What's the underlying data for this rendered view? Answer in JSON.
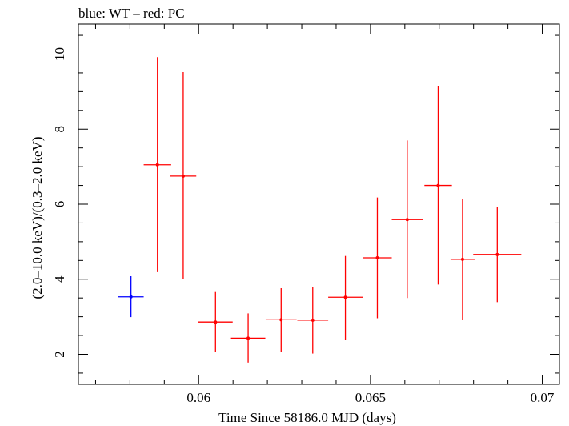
{
  "chart_data": {
    "type": "scatter",
    "title": "blue: WT – red: PC",
    "xlabel": "Time Since 58186.0 MJD (days)",
    "ylabel": "(2.0–10.0 keV)/(0.3–2.0 keV)",
    "xlim": [
      0.0565,
      0.0705
    ],
    "ylim": [
      1.2,
      10.8
    ],
    "x_ticks": [
      {
        "value": 0.06,
        "label": "0.06"
      },
      {
        "value": 0.065,
        "label": "0.065"
      },
      {
        "value": 0.07,
        "label": "0.07"
      }
    ],
    "y_ticks": [
      {
        "value": 2,
        "label": "2"
      },
      {
        "value": 4,
        "label": "4"
      },
      {
        "value": 6,
        "label": "6"
      },
      {
        "value": 8,
        "label": "8"
      },
      {
        "value": 10,
        "label": "10"
      }
    ],
    "series": [
      {
        "color": "#0000ff",
        "points": [
          {
            "x": 0.05803,
            "xerr": 0.00037,
            "y": 3.53,
            "ylo": 2.99,
            "yhi": 4.08
          }
        ]
      },
      {
        "color": "#ff0000",
        "points": [
          {
            "x": 0.0588,
            "xerr": 0.0004,
            "y": 7.05,
            "ylo": 4.19,
            "yhi": 9.92
          },
          {
            "x": 0.05955,
            "xerr": 0.00038,
            "y": 6.75,
            "ylo": 4.0,
            "yhi": 9.52
          },
          {
            "x": 0.06049,
            "xerr": 0.0005,
            "y": 2.86,
            "ylo": 2.07,
            "yhi": 3.66
          },
          {
            "x": 0.06144,
            "xerr": 0.0005,
            "y": 2.43,
            "ylo": 1.78,
            "yhi": 3.09
          },
          {
            "x": 0.0624,
            "xerr": 0.00045,
            "y": 2.92,
            "ylo": 2.07,
            "yhi": 3.76
          },
          {
            "x": 0.06332,
            "xerr": 0.00045,
            "y": 2.91,
            "ylo": 2.02,
            "yhi": 3.8
          },
          {
            "x": 0.06427,
            "xerr": 0.0005,
            "y": 3.52,
            "ylo": 2.39,
            "yhi": 4.62
          },
          {
            "x": 0.0652,
            "xerr": 0.00042,
            "y": 4.57,
            "ylo": 2.96,
            "yhi": 6.18
          },
          {
            "x": 0.06607,
            "xerr": 0.00045,
            "y": 5.59,
            "ylo": 3.5,
            "yhi": 7.7
          },
          {
            "x": 0.06697,
            "xerr": 0.0004,
            "y": 6.5,
            "ylo": 3.86,
            "yhi": 9.14
          },
          {
            "x": 0.06768,
            "xerr": 0.00035,
            "y": 4.53,
            "ylo": 2.92,
            "yhi": 6.13
          },
          {
            "x": 0.06869,
            "xerr": 0.0007,
            "y": 4.66,
            "ylo": 3.39,
            "yhi": 5.92
          }
        ]
      }
    ]
  }
}
